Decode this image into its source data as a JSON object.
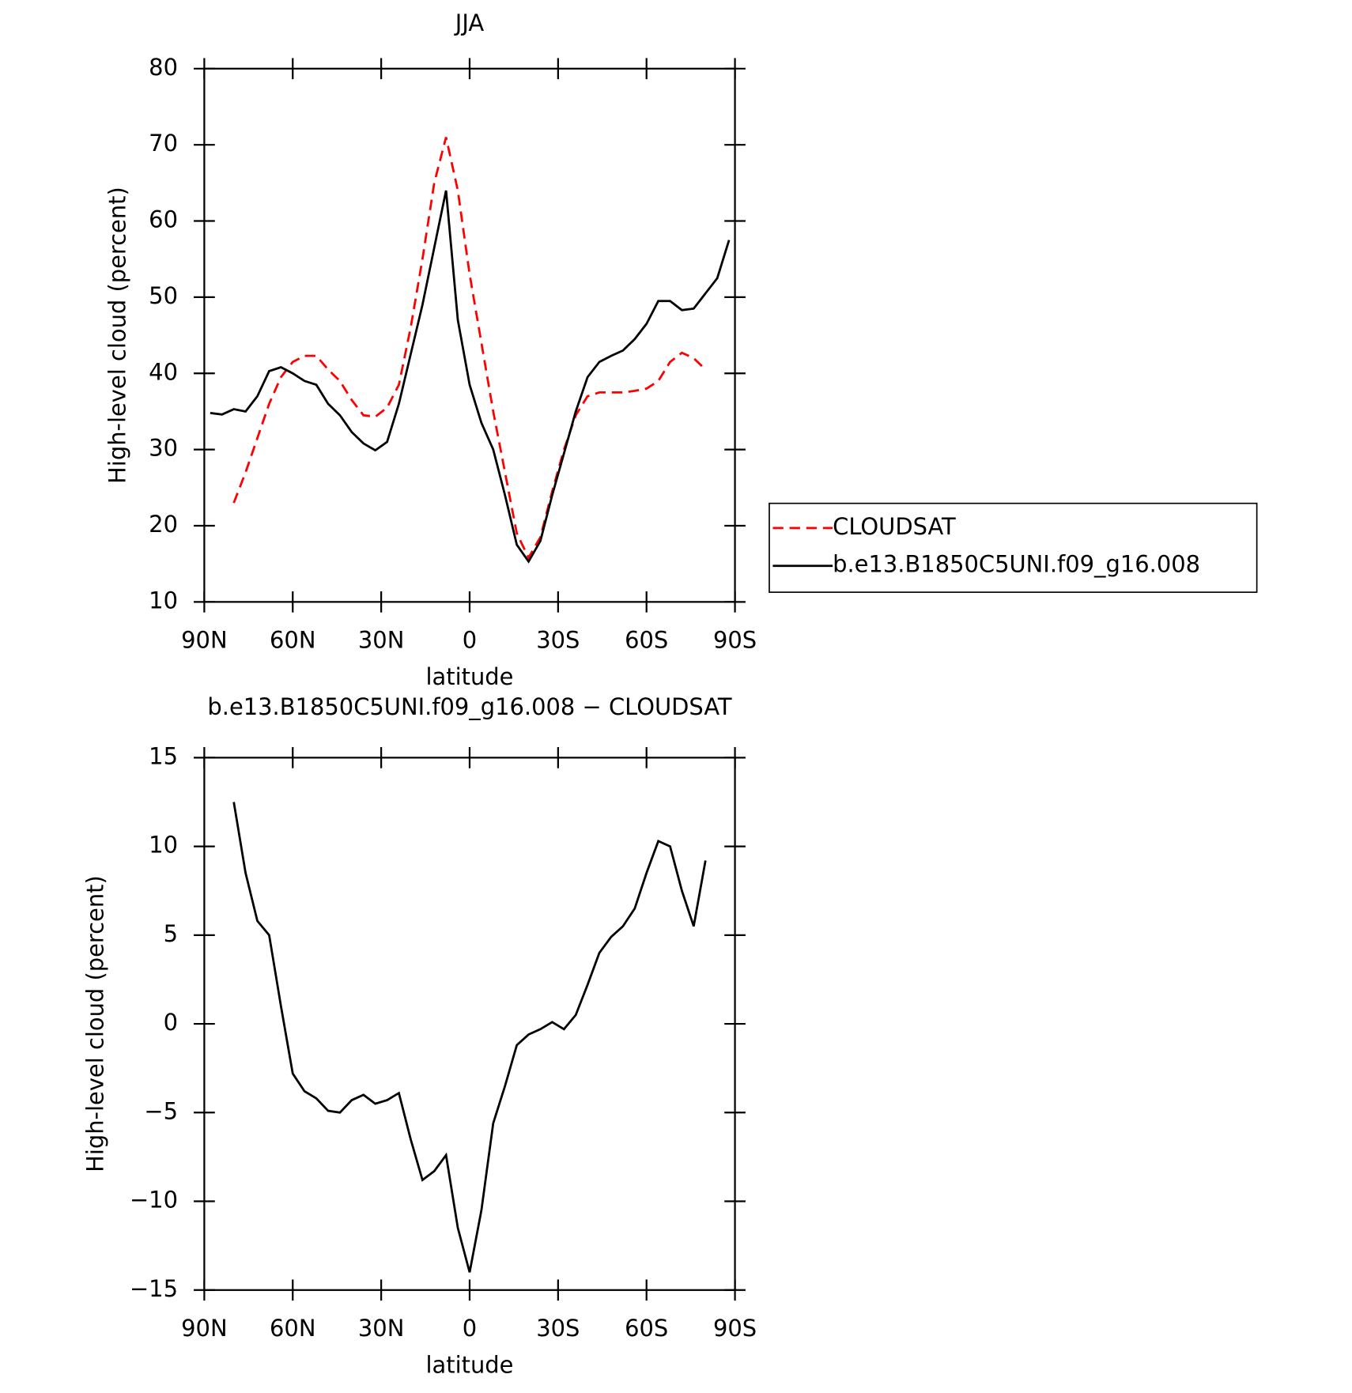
{
  "chart_data": [
    {
      "type": "line",
      "title": "JJA",
      "xlabel": "latitude",
      "ylabel": "High-level cloud (percent)",
      "x": [
        88,
        84,
        80,
        76,
        72,
        68,
        64,
        60,
        56,
        52,
        48,
        44,
        40,
        36,
        32,
        28,
        24,
        20,
        16,
        12,
        8,
        4,
        0,
        -4,
        -8,
        -12,
        -16,
        -20,
        -24,
        -28,
        -32,
        -36,
        -40,
        -44,
        -48,
        -52,
        -56,
        -60,
        -64,
        -68,
        -72,
        -76,
        -80,
        -84,
        -88
      ],
      "series": [
        {
          "name": "CLOUDSAT",
          "color": "#ff0000",
          "dash": true,
          "values": [
            null,
            null,
            23,
            27,
            31.5,
            36,
            39.5,
            41.5,
            42.3,
            42.3,
            40.5,
            39,
            36.5,
            34.5,
            34.3,
            35.5,
            38.5,
            46,
            55,
            65,
            71,
            64,
            53,
            44,
            35,
            27,
            19,
            15.8,
            18.5,
            24.5,
            30,
            34.5,
            37,
            37.5,
            37.5,
            37.5,
            37.7,
            38,
            39,
            41.5,
            42.7,
            42,
            40.5,
            null,
            null
          ]
        },
        {
          "name": "b.e13.B1850C5UNI.f09_g16.008",
          "color": "#000000",
          "dash": false,
          "values": [
            34.8,
            34.6,
            35.3,
            35,
            37,
            40.3,
            40.8,
            40,
            39,
            38.5,
            36,
            34.5,
            32.3,
            30.8,
            29.9,
            31,
            36,
            42.5,
            49,
            56.5,
            64,
            47,
            38.5,
            33.5,
            30,
            24,
            17.5,
            15.3,
            18,
            24,
            29.5,
            35,
            39.5,
            41.5,
            42.3,
            43,
            44.5,
            46.5,
            49.5,
            49.5,
            48.3,
            48.5,
            50.5,
            52.5,
            57.5
          ]
        }
      ],
      "xlim": [
        90,
        -90
      ],
      "xticks": [
        {
          "value": 90,
          "label": "90N"
        },
        {
          "value": 60,
          "label": "60N"
        },
        {
          "value": 30,
          "label": "30N"
        },
        0,
        {
          "value": -30,
          "label": "30S"
        },
        {
          "value": -60,
          "label": "60S"
        },
        {
          "value": -90,
          "label": "90S"
        }
      ],
      "ylim": [
        10,
        80
      ],
      "yticks": [
        10,
        20,
        30,
        40,
        50,
        60,
        70,
        80
      ],
      "legend": "right"
    },
    {
      "type": "line",
      "title": "b.e13.B1850C5UNI.f09_g16.008 − CLOUDSAT",
      "xlabel": "latitude",
      "ylabel": "High-level cloud (percent)",
      "x": [
        88,
        84,
        80,
        76,
        72,
        68,
        64,
        60,
        56,
        52,
        48,
        44,
        40,
        36,
        32,
        28,
        24,
        20,
        16,
        12,
        8,
        4,
        0,
        -4,
        -8,
        -12,
        -16,
        -20,
        -24,
        -28,
        -32,
        -36,
        -40,
        -44,
        -48,
        -52,
        -56,
        -60,
        -64,
        -68,
        -72,
        -76,
        -80,
        -84,
        -88
      ],
      "series": [
        {
          "color": "#000000",
          "dash": false,
          "values": [
            null,
            null,
            12.5,
            8.5,
            5.8,
            5,
            1,
            -2.8,
            -3.8,
            -4.2,
            -4.9,
            -5,
            -4.3,
            -4,
            -4.5,
            -4.3,
            -3.9,
            -6.5,
            -8.8,
            -8.3,
            -7.4,
            -11.5,
            -14,
            -10.5,
            -5.6,
            -3.5,
            -1.2,
            -0.6,
            -0.3,
            0.1,
            -0.3,
            0.5,
            2.2,
            4,
            4.9,
            5.5,
            6.5,
            8.5,
            10.3,
            10,
            7.5,
            5.5,
            9.2,
            null,
            null
          ]
        }
      ],
      "xlim": [
        90,
        -90
      ],
      "xticks": [
        {
          "value": 90,
          "label": "90N"
        },
        {
          "value": 60,
          "label": "60N"
        },
        {
          "value": 30,
          "label": "30N"
        },
        0,
        {
          "value": -30,
          "label": "30S"
        },
        {
          "value": -60,
          "label": "60S"
        },
        {
          "value": -90,
          "label": "90S"
        }
      ],
      "ylim": [
        -15,
        15
      ],
      "yticks": [
        {
          "value": -15,
          "label": "−15"
        },
        {
          "value": -10,
          "label": "−10"
        },
        {
          "value": -5,
          "label": "−5"
        },
        0,
        5,
        10,
        15
      ]
    }
  ]
}
